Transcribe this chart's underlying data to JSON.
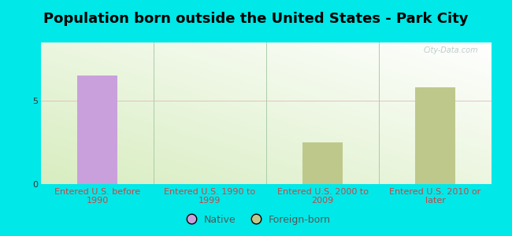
{
  "title": "Population born outside the United States - Park City",
  "categories": [
    "Entered U.S. before\n1990",
    "Entered U.S. 1990 to\n1999",
    "Entered U.S. 2000 to\n2009",
    "Entered U.S. 2010 or\nlater"
  ],
  "native_values": [
    6.5,
    0,
    0,
    0
  ],
  "foreign_values": [
    0,
    0,
    2.5,
    5.8
  ],
  "native_color": "#c9a0dc",
  "foreign_color": "#bec88a",
  "bg_color": "#00e8e8",
  "ylim": [
    0,
    8.5
  ],
  "yticks": [
    0,
    5
  ],
  "bar_width": 0.35,
  "title_fontsize": 13,
  "tick_label_fontsize": 8,
  "legend_labels": [
    "Native",
    "Foreign-born"
  ],
  "watermark": "City-Data.com"
}
